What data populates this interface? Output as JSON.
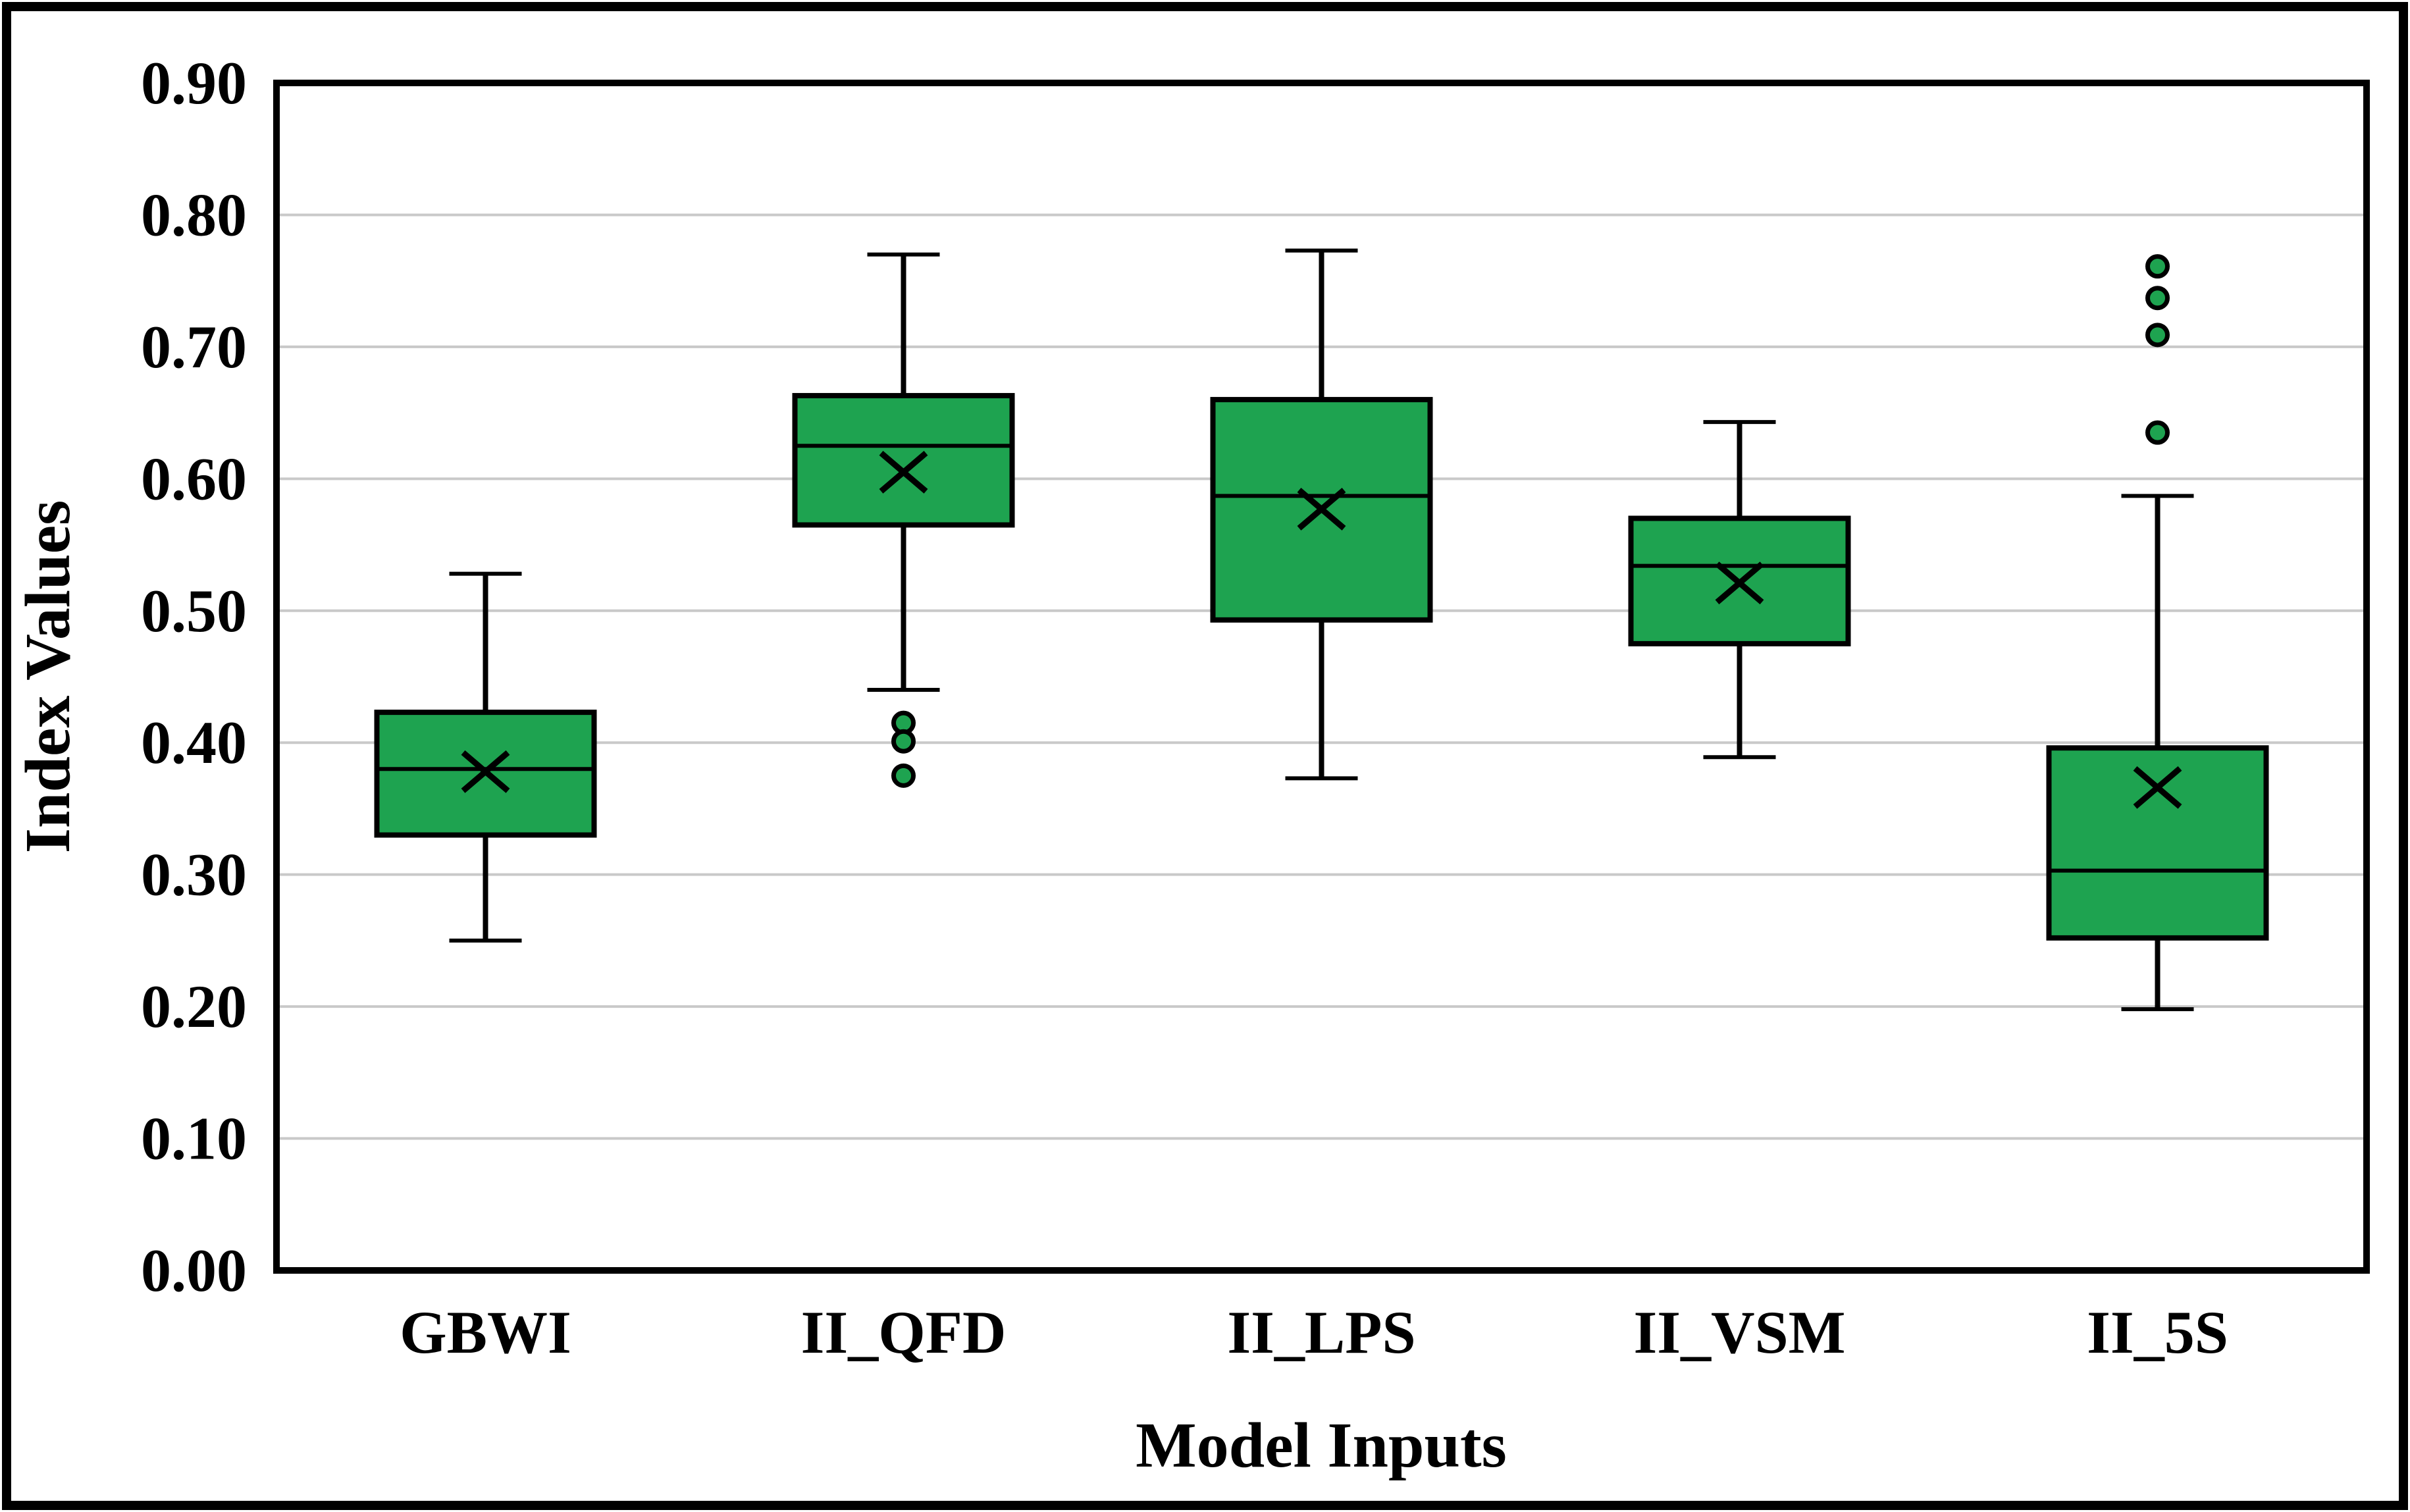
{
  "figure": {
    "background_color": "#ffffff",
    "outer_border_color": "#000000"
  },
  "chart_data": {
    "type": "box",
    "title": "",
    "xlabel": "Model Inputs",
    "ylabel": "Index Values",
    "ylim": [
      0.0,
      0.9
    ],
    "ytick_step": 0.1,
    "ytick_labels": [
      "0.00",
      "0.10",
      "0.20",
      "0.30",
      "0.40",
      "0.50",
      "0.60",
      "0.70",
      "0.80",
      "0.90"
    ],
    "grid": true,
    "legend": false,
    "categories": [
      "GBWI",
      "II_QFD",
      "II_LPS",
      "II_VSM",
      "II_5S"
    ],
    "series": [
      {
        "name": "GBWI",
        "min": 0.25,
        "q1": 0.33,
        "median": 0.38,
        "q3": 0.423,
        "max": 0.528,
        "mean": 0.378,
        "outliers": []
      },
      {
        "name": "II_QFD",
        "min": 0.44,
        "q1": 0.565,
        "median": 0.625,
        "q3": 0.663,
        "max": 0.77,
        "mean": 0.605,
        "outliers": [
          0.415,
          0.401,
          0.375
        ]
      },
      {
        "name": "II_LPS",
        "min": 0.373,
        "q1": 0.493,
        "median": 0.587,
        "q3": 0.66,
        "max": 0.773,
        "mean": 0.577,
        "outliers": []
      },
      {
        "name": "II_VSM",
        "min": 0.389,
        "q1": 0.475,
        "median": 0.534,
        "q3": 0.57,
        "max": 0.643,
        "mean": 0.521,
        "outliers": []
      },
      {
        "name": "II_5S",
        "min": 0.198,
        "q1": 0.252,
        "median": 0.303,
        "q3": 0.396,
        "max": 0.587,
        "mean": 0.366,
        "outliers": [
          0.635,
          0.709,
          0.737,
          0.761
        ]
      }
    ],
    "colors": {
      "box_fill": "#1EA350",
      "box_edge": "#000000",
      "median_line": "#000000",
      "whisker": "#000000",
      "mean_marker": "#000000",
      "outlier_fill": "#1EA350",
      "outlier_edge": "#000000",
      "gridline": "#C9C9C9",
      "axis_line": "#000000"
    },
    "marker_names": {
      "mean": "mean-x-marker",
      "outlier": "outlier-dot-marker"
    }
  }
}
